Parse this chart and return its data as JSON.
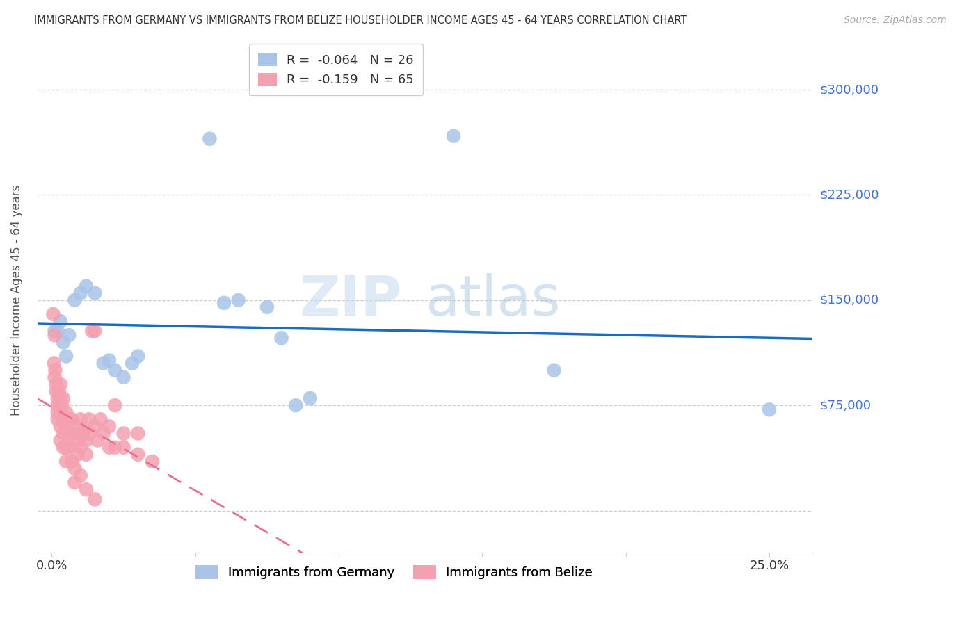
{
  "title": "IMMIGRANTS FROM GERMANY VS IMMIGRANTS FROM BELIZE HOUSEHOLDER INCOME AGES 45 - 64 YEARS CORRELATION CHART",
  "source": "Source: ZipAtlas.com",
  "ylabel": "Householder Income Ages 45 - 64 years",
  "x_ticks": [
    0.0,
    0.05,
    0.1,
    0.15,
    0.2,
    0.25
  ],
  "y_tick_values": [
    0,
    75000,
    150000,
    225000,
    300000
  ],
  "ylim": [
    -30000,
    330000
  ],
  "xlim": [
    -0.005,
    0.265
  ],
  "legend_items": [
    {
      "label": "R =  -0.064   N = 26",
      "color": "#aac4e8"
    },
    {
      "label": "R =  -0.159   N = 65",
      "color": "#f4a0b0"
    }
  ],
  "germany_x": [
    0.001,
    0.002,
    0.003,
    0.004,
    0.005,
    0.006,
    0.008,
    0.01,
    0.012,
    0.015,
    0.018,
    0.02,
    0.022,
    0.025,
    0.028,
    0.03,
    0.055,
    0.06,
    0.065,
    0.075,
    0.08,
    0.085,
    0.09,
    0.14,
    0.175,
    0.25
  ],
  "germany_y": [
    128000,
    128000,
    135000,
    120000,
    110000,
    125000,
    150000,
    155000,
    160000,
    155000,
    105000,
    107000,
    100000,
    95000,
    105000,
    110000,
    265000,
    148000,
    150000,
    145000,
    123000,
    75000,
    80000,
    267000,
    100000,
    72000
  ],
  "belize_x": [
    0.0005,
    0.0008,
    0.001,
    0.001,
    0.0012,
    0.0015,
    0.0015,
    0.002,
    0.002,
    0.002,
    0.002,
    0.0025,
    0.0025,
    0.003,
    0.003,
    0.003,
    0.003,
    0.003,
    0.0035,
    0.004,
    0.004,
    0.004,
    0.004,
    0.005,
    0.005,
    0.005,
    0.005,
    0.006,
    0.006,
    0.006,
    0.007,
    0.007,
    0.007,
    0.008,
    0.008,
    0.009,
    0.009,
    0.009,
    0.01,
    0.01,
    0.01,
    0.011,
    0.012,
    0.012,
    0.013,
    0.013,
    0.014,
    0.015,
    0.015,
    0.016,
    0.017,
    0.018,
    0.02,
    0.02,
    0.022,
    0.022,
    0.025,
    0.025,
    0.03,
    0.03,
    0.035,
    0.008,
    0.01,
    0.012,
    0.015
  ],
  "belize_y": [
    140000,
    105000,
    125000,
    95000,
    100000,
    90000,
    85000,
    80000,
    75000,
    70000,
    65000,
    85000,
    75000,
    90000,
    80000,
    70000,
    60000,
    50000,
    75000,
    80000,
    65000,
    55000,
    45000,
    70000,
    60000,
    45000,
    35000,
    65000,
    55000,
    45000,
    65000,
    55000,
    35000,
    30000,
    55000,
    60000,
    50000,
    40000,
    65000,
    55000,
    45000,
    55000,
    50000,
    40000,
    65000,
    55000,
    128000,
    128000,
    60000,
    50000,
    65000,
    55000,
    60000,
    45000,
    45000,
    75000,
    55000,
    45000,
    40000,
    55000,
    35000,
    20000,
    25000,
    15000,
    8000
  ],
  "germany_line_color": "#1a6bc4",
  "belize_line_color": "#e87090",
  "germany_scatter_color": "#aac4e8",
  "belize_scatter_color": "#f4a0b0",
  "watermark_zip": "ZIP",
  "watermark_atlas": "atlas",
  "background_color": "#ffffff",
  "grid_color": "#cccccc"
}
